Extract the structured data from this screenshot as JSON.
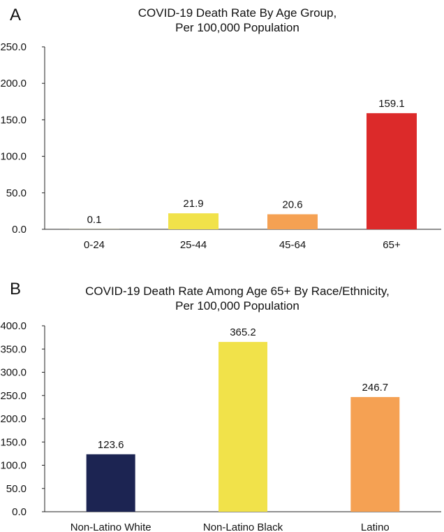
{
  "chart_data": [
    {
      "type": "bar",
      "panel_label": "A",
      "title_lines": [
        "COVID-19 Death Rate By Age Group,",
        "Per 100,000 Population"
      ],
      "categories": [
        "0-24",
        "25-44",
        "45-64",
        "65+"
      ],
      "values": [
        0.1,
        21.9,
        20.6,
        159.1
      ],
      "value_labels": [
        "0.1",
        "21.9",
        "20.6",
        "159.1"
      ],
      "colors": [
        "#f1e24a",
        "#f1e24a",
        "#f5a153",
        "#dc2a2a"
      ],
      "ylim": [
        0,
        250
      ],
      "yticks": [
        "0.0",
        "50.0",
        "100.0",
        "150.0",
        "200.0",
        "250.0"
      ],
      "xlabel": "",
      "ylabel": "",
      "grid": false
    },
    {
      "type": "bar",
      "panel_label": "B",
      "title_lines": [
        "COVID-19 Death Rate Among Age 65+ By Race/Ethnicity,",
        "Per 100,000 Population"
      ],
      "categories": [
        "Non-Latino White",
        "Non-Latino Black",
        "Latino"
      ],
      "values": [
        123.6,
        365.2,
        246.7
      ],
      "value_labels": [
        "123.6",
        "365.2",
        "246.7"
      ],
      "colors": [
        "#1c2452",
        "#f1e24a",
        "#f5a153"
      ],
      "ylim": [
        0,
        400
      ],
      "yticks": [
        "0.0",
        "50.0",
        "100.0",
        "150.0",
        "200.0",
        "250.0",
        "300.0",
        "350.0",
        "400.0"
      ],
      "xlabel": "",
      "ylabel": "",
      "grid": false
    }
  ]
}
